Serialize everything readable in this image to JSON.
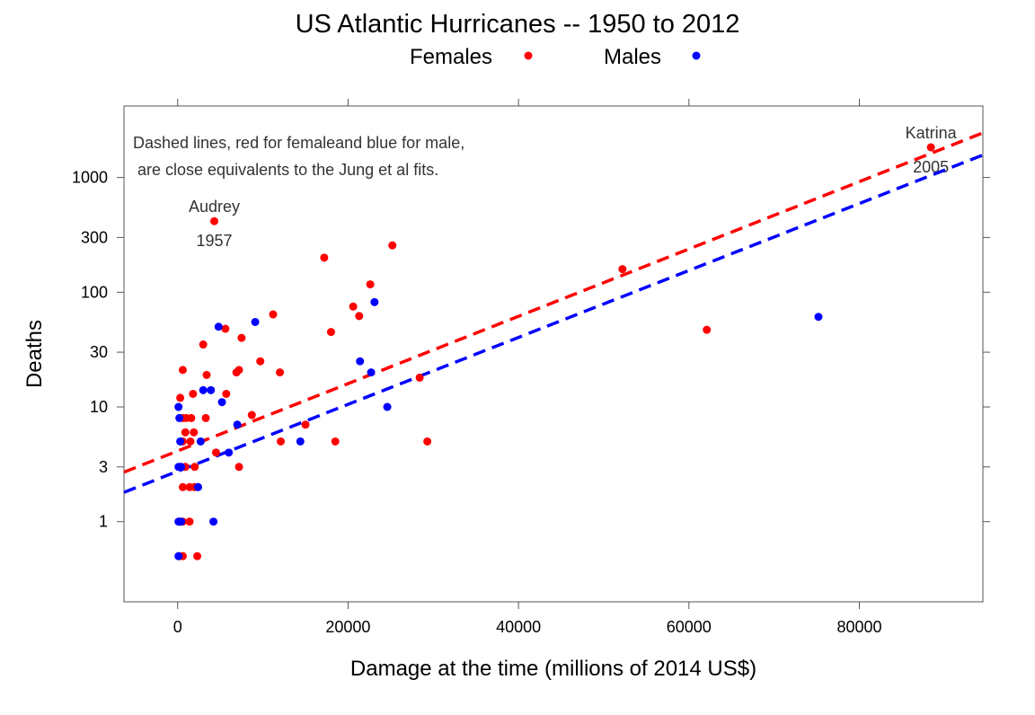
{
  "chart_data": {
    "type": "scatter",
    "title": "US Atlantic Hurricanes -- 1950 to 2012",
    "xlabel": "Damage at the time (millions of 2014 US$)",
    "ylabel": "Deaths",
    "y_scale": "log",
    "xlim": [
      -6300,
      94500
    ],
    "ylim": [
      0.2,
      4200
    ],
    "x_ticks": [
      0,
      20000,
      40000,
      60000,
      80000
    ],
    "x_tick_labels": [
      "0",
      "20000",
      "40000",
      "60000",
      "80000"
    ],
    "y_ticks": [
      1,
      3,
      10,
      30,
      100,
      300,
      1000
    ],
    "y_tick_labels": [
      "1",
      "3",
      "10",
      "30",
      "100",
      "300",
      "1000"
    ],
    "legend": {
      "placement": "top",
      "entries": [
        {
          "label": "Females",
          "color": "#ff0000"
        },
        {
          "label": "Males",
          "color": "#0000ff"
        }
      ]
    },
    "note_lines": [
      "Dashed lines, red for femaleand blue for male,",
      " are close equivalents to the Jung et al fits."
    ],
    "annotations": [
      {
        "name": "Audrey",
        "year": "1957",
        "x": 4300,
        "y": 416
      },
      {
        "name": "Katrina",
        "year": "2005",
        "x": 88400,
        "y": 1833
      }
    ],
    "fit_lines": [
      {
        "name": "female-fit",
        "color": "#ff0000",
        "x": [
          -6300,
          94500
        ],
        "y": [
          2.7,
          2450
        ]
      },
      {
        "name": "male-fit",
        "color": "#0000ff",
        "x": [
          -6300,
          94500
        ],
        "y": [
          1.8,
          1570
        ]
      }
    ],
    "series": [
      {
        "name": "Females",
        "color": "#ff0000",
        "points": [
          [
            4300,
            416
          ],
          [
            88400,
            1833
          ],
          [
            25200,
            256
          ],
          [
            17200,
            200
          ],
          [
            52200,
            159
          ],
          [
            22600,
            117
          ],
          [
            20600,
            75
          ],
          [
            21300,
            62
          ],
          [
            11200,
            64
          ],
          [
            5600,
            48
          ],
          [
            62100,
            47
          ],
          [
            18000,
            45
          ],
          [
            7500,
            40
          ],
          [
            3000,
            35
          ],
          [
            9700,
            25
          ],
          [
            7200,
            21
          ],
          [
            6900,
            20
          ],
          [
            12000,
            20
          ],
          [
            3400,
            19
          ],
          [
            28400,
            18
          ],
          [
            600,
            21
          ],
          [
            5700,
            13
          ],
          [
            1800,
            13
          ],
          [
            300,
            12
          ],
          [
            8700,
            8.5
          ],
          [
            3300,
            8
          ],
          [
            1000,
            8
          ],
          [
            1600,
            8
          ],
          [
            15000,
            7
          ],
          [
            600,
            8
          ],
          [
            900,
            6
          ],
          [
            1900,
            6
          ],
          [
            600,
            5
          ],
          [
            1500,
            5
          ],
          [
            12100,
            5
          ],
          [
            18500,
            5
          ],
          [
            29300,
            5
          ],
          [
            4500,
            4
          ],
          [
            300,
            3
          ],
          [
            900,
            3
          ],
          [
            2000,
            3
          ],
          [
            7200,
            3
          ],
          [
            600,
            2
          ],
          [
            1400,
            2
          ],
          [
            2000,
            2
          ],
          [
            300,
            1
          ],
          [
            600,
            1
          ],
          [
            1400,
            1
          ],
          [
            200,
            0.5
          ],
          [
            600,
            0.5
          ],
          [
            2300,
            0.5
          ]
        ]
      },
      {
        "name": "Males",
        "color": "#0000ff",
        "points": [
          [
            23100,
            82
          ],
          [
            9100,
            55
          ],
          [
            4800,
            50
          ],
          [
            75200,
            61
          ],
          [
            21400,
            25
          ],
          [
            22700,
            20
          ],
          [
            3000,
            14
          ],
          [
            3900,
            14
          ],
          [
            5200,
            11
          ],
          [
            24600,
            10
          ],
          [
            100,
            10
          ],
          [
            200,
            8
          ],
          [
            7000,
            7
          ],
          [
            300,
            5
          ],
          [
            2700,
            5
          ],
          [
            14400,
            5
          ],
          [
            6000,
            4
          ],
          [
            100,
            3
          ],
          [
            400,
            3
          ],
          [
            2400,
            2
          ],
          [
            100,
            1
          ],
          [
            200,
            1
          ],
          [
            400,
            1
          ],
          [
            4200,
            1
          ],
          [
            100,
            0.5
          ]
        ]
      }
    ]
  }
}
